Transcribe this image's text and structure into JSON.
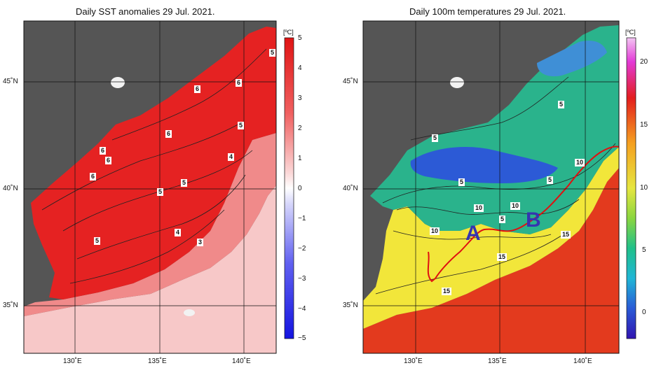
{
  "left_map": {
    "title": "Daily SST anomalies 29 Jul. 2021.",
    "unit": "[ºC]",
    "colorbar_ticks": [
      "5",
      "4",
      "3",
      "2",
      "1",
      "0",
      "−1",
      "−2",
      "−3",
      "−4",
      "−5"
    ],
    "colorbar_range": [
      -5,
      5
    ],
    "lat_labels": [
      "45˚N",
      "40˚N",
      "35˚N"
    ],
    "lon_labels": [
      "130˚E",
      "135˚E",
      "140˚E"
    ],
    "contour_labels": [
      "5",
      "6",
      "6",
      "6",
      "6",
      "5",
      "6",
      "6",
      "4",
      "5",
      "5",
      "5",
      "4",
      "3"
    ],
    "colors": {
      "land": "#555555",
      "strong": "#e52222",
      "medium": "#f08a8a",
      "weak": "#f7c8c8",
      "cold": "#2828ff"
    }
  },
  "right_map": {
    "title": "Daily 100m temperatures 29 Jul. 2021.",
    "unit": "[ºC]",
    "colorbar_ticks": [
      "20",
      "15",
      "10",
      "5",
      "0"
    ],
    "colorbar_range": [
      -2,
      22
    ],
    "lat_labels": [
      "45˚N",
      "40˚N",
      "35˚N"
    ],
    "lon_labels": [
      "130˚E",
      "135˚E",
      "140˚E"
    ],
    "contour_labels": [
      "5",
      "5",
      "5",
      "5",
      "10",
      "10",
      "10",
      "5",
      "10",
      "15",
      "15",
      "15"
    ],
    "region_labels": [
      "A",
      "B"
    ],
    "colors": {
      "land": "#555555",
      "cold": "#2c5ad6",
      "mid": "#2ab38c",
      "warm": "#f2e63a",
      "hot": "#e33a1e",
      "front_line": "#e01010"
    }
  }
}
